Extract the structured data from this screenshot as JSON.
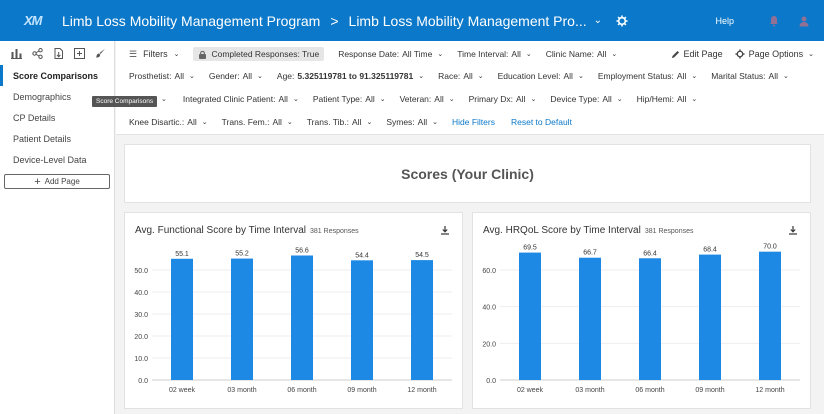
{
  "header": {
    "logo_text": "XM",
    "app_title": "Limb Loss Mobility Management Program",
    "separator": ">",
    "page_crumb": "Limb Loss Mobility Management Pro...",
    "help_label": "Help"
  },
  "sidebar": {
    "tools": [
      "bar-chart-icon",
      "share-icon",
      "export-icon",
      "add-widget-icon",
      "brush-icon"
    ],
    "items": [
      {
        "label": "Score Comparisons",
        "active": true
      },
      {
        "label": "Demographics"
      },
      {
        "label": "CP Details"
      },
      {
        "label": "Patient Details"
      },
      {
        "label": "Device-Level Data"
      }
    ],
    "add_page_label": "Add Page"
  },
  "tooltip": "Score Comparisons",
  "filters": {
    "filters_label": "Filters",
    "completed_chip": "Completed Responses: True",
    "edit_page_label": "Edit Page",
    "page_options_label": "Page Options",
    "row1": [
      {
        "label": "Response Date:",
        "value": "All Time"
      },
      {
        "label": "Time Interval:",
        "value": "All"
      },
      {
        "label": "Clinic Name:",
        "value": "All"
      }
    ],
    "row2": [
      {
        "label": "Prosthetist:",
        "value": "All"
      },
      {
        "label": "Gender:",
        "value": "All"
      },
      {
        "label": "Age:",
        "value": "5.325119781 to 91.325119781",
        "bold": true
      },
      {
        "label": "Race:",
        "value": "All"
      },
      {
        "label": "Education Level:",
        "value": "All"
      },
      {
        "label": "Employment Status:",
        "value": "All"
      },
      {
        "label": "Marital Status:",
        "value": "All"
      }
    ],
    "row3": [
      {
        "label": "Integrated Clinic Patient:",
        "value": "All"
      },
      {
        "label": "Patient Type:",
        "value": "All"
      },
      {
        "label": "Veteran:",
        "value": "All"
      },
      {
        "label": "Primary Dx:",
        "value": "All"
      },
      {
        "label": "Device Type:",
        "value": "All"
      },
      {
        "label": "Hip/Hemi:",
        "value": "All"
      }
    ],
    "row4": [
      {
        "label": "Knee Disartic.:",
        "value": "All"
      },
      {
        "label": "Trans. Fem.:",
        "value": "All"
      },
      {
        "label": "Trans. Tib.:",
        "value": "All"
      },
      {
        "label": "Symes:",
        "value": "All"
      }
    ],
    "hide_filters_label": "Hide Filters",
    "reset_label": "Reset to Default"
  },
  "section_title": "Scores (Your Clinic)",
  "cards": [
    {
      "title": "Avg. Functional Score by Time Interval",
      "responses": "381 Responses"
    },
    {
      "title": "Avg. HRQoL Score by Time Interval",
      "responses": "381 Responses"
    }
  ],
  "chart_data": [
    {
      "type": "bar",
      "title": "Avg. Functional Score by Time Interval",
      "categories": [
        "02 week",
        "03 month",
        "06 month",
        "09 month",
        "12 month"
      ],
      "values": [
        55.1,
        55.2,
        56.6,
        54.4,
        54.5
      ],
      "ylim": [
        0,
        60
      ],
      "yticks": [
        0.0,
        10.0,
        20.0,
        30.0,
        40.0,
        50.0
      ],
      "color": "#1e88e5",
      "grid": true
    },
    {
      "type": "bar",
      "title": "Avg. HRQoL Score by Time Interval",
      "categories": [
        "02 week",
        "03 month",
        "06 month",
        "09 month",
        "12 month"
      ],
      "values": [
        69.5,
        66.7,
        66.4,
        68.4,
        70.0
      ],
      "ylim": [
        0,
        72
      ],
      "yticks": [
        0.0,
        20.0,
        40.0,
        60.0
      ],
      "color": "#1e88e5",
      "grid": true
    }
  ]
}
